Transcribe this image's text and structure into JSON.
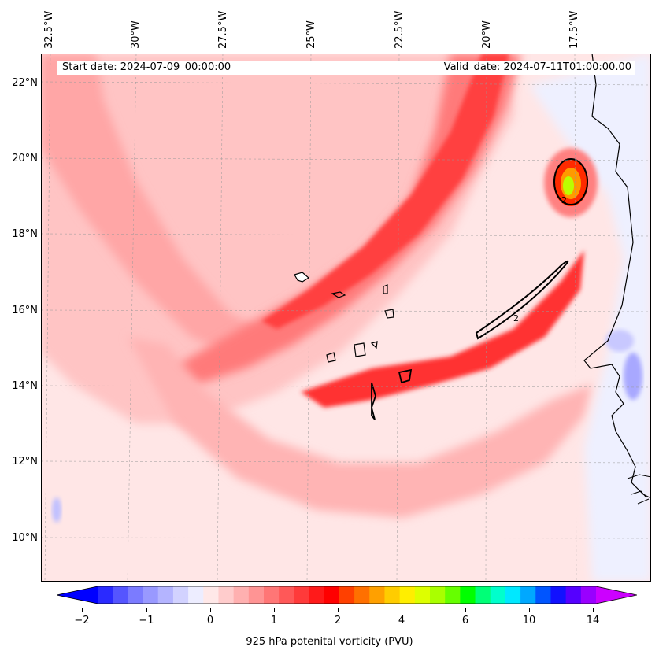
{
  "map": {
    "header": {
      "start_date": "Start date: 2024-07-09_00:00:00",
      "valid_date": "Valid_date: 2024-07-11T01:00:00.00"
    },
    "lon_labels": [
      "32.5°W",
      "30°W",
      "27.5°W",
      "25°W",
      "22.5°W",
      "20°W",
      "17.5°W"
    ],
    "lat_labels": [
      "22°N",
      "20°N",
      "18°N",
      "16°N",
      "14°N",
      "12°N",
      "10°N"
    ],
    "contour_label": "2",
    "colorbar": {
      "ticks": [
        "−2",
        "−1",
        "0",
        "1",
        "2",
        "4",
        "6",
        "10",
        "14"
      ],
      "label": "925 hPa potenital vorticity (PVU)",
      "colors": [
        "#0000ff",
        "#2a2aff",
        "#5555ff",
        "#7b7bff",
        "#9999ff",
        "#b4b4ff",
        "#d2d2ff",
        "#ededff",
        "#ffe8e8",
        "#ffcccc",
        "#ffb0b0",
        "#ff9494",
        "#ff7676",
        "#ff5858",
        "#ff3a3a",
        "#ff1a1a",
        "#ff0000",
        "#ff4000",
        "#ff7000",
        "#ffa000",
        "#ffcc00",
        "#ffee00",
        "#ddff00",
        "#aaff00",
        "#66ff00",
        "#00ff00",
        "#00ff77",
        "#00ffcc",
        "#00e8ff",
        "#00a8ff",
        "#0055ff",
        "#1111ff",
        "#5500ff",
        "#9900ff",
        "#cc00ff"
      ]
    }
  }
}
